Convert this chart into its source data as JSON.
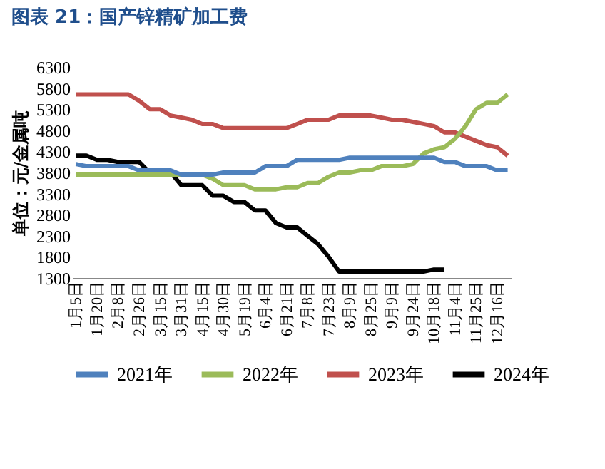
{
  "chart_data": {
    "type": "line",
    "title": "图表 21：国产锌精矿加工费",
    "ylabel": "单位：元/金属吨",
    "categories": [
      "1月5日",
      null,
      "1月20日",
      null,
      "2月8日",
      null,
      "2月26日",
      null,
      "3月15日",
      null,
      "3月31日",
      null,
      "4月15日",
      null,
      "4月30日",
      null,
      "5月19日",
      null,
      "6月4日",
      null,
      "6月21日",
      null,
      "7月8日",
      null,
      "7月23日",
      null,
      "8月9日",
      null,
      "8月25日",
      null,
      "9月9日",
      null,
      "9月24日",
      null,
      "10月18日",
      null,
      "11月4日",
      null,
      "11月25日",
      null,
      "12月16日",
      null
    ],
    "series": [
      {
        "name": "2021年",
        "color": "#4f81bd",
        "values": [
          4000,
          3950,
          3950,
          3950,
          3950,
          3950,
          3850,
          3850,
          3850,
          3850,
          3750,
          3750,
          3750,
          3750,
          3800,
          3800,
          3800,
          3800,
          3950,
          3950,
          3950,
          4100,
          4100,
          4100,
          4100,
          4100,
          4150,
          4150,
          4150,
          4150,
          4150,
          4150,
          4150,
          4150,
          4150,
          4050,
          4050,
          3950,
          3950,
          3950,
          3850,
          3850
        ]
      },
      {
        "name": "2022年",
        "color": "#9bbb59",
        "values": [
          3750,
          3750,
          3750,
          3750,
          3750,
          3750,
          3750,
          3750,
          3750,
          3750,
          3750,
          3750,
          3750,
          3650,
          3500,
          3500,
          3500,
          3400,
          3400,
          3400,
          3450,
          3450,
          3550,
          3550,
          3700,
          3800,
          3800,
          3850,
          3850,
          3950,
          3950,
          3950,
          4000,
          4250,
          4350,
          4400,
          4600,
          4900,
          5300,
          5450,
          5450,
          5650
        ]
      },
      {
        "name": "2023年",
        "color": "#c0504d",
        "values": [
          5650,
          5650,
          5650,
          5650,
          5650,
          5650,
          5500,
          5300,
          5300,
          5150,
          5100,
          5050,
          4950,
          4950,
          4850,
          4850,
          4850,
          4850,
          4850,
          4850,
          4850,
          4950,
          5050,
          5050,
          5050,
          5150,
          5150,
          5150,
          5150,
          5100,
          5050,
          5050,
          5000,
          4950,
          4900,
          4750,
          4750,
          4650,
          4550,
          4450,
          4400,
          4200
        ]
      },
      {
        "name": "2024年",
        "color": "#000000",
        "values": [
          4200,
          4200,
          4100,
          4100,
          4050,
          4050,
          4050,
          3800,
          3800,
          3800,
          3500,
          3500,
          3500,
          3250,
          3250,
          3100,
          3100,
          2900,
          2900,
          2600,
          2500,
          2500,
          2300,
          2100,
          1800,
          1450,
          1450,
          1450,
          1450,
          1450,
          1450,
          1450,
          1450,
          1450,
          1500,
          1500,
          null,
          null,
          null,
          null,
          null,
          null
        ]
      }
    ],
    "ylim": [
      1300,
      6300
    ],
    "yticks": [
      1300,
      1800,
      2300,
      2800,
      3300,
      3800,
      4300,
      4800,
      5300,
      5800,
      6300
    ],
    "legend": "bottom"
  }
}
